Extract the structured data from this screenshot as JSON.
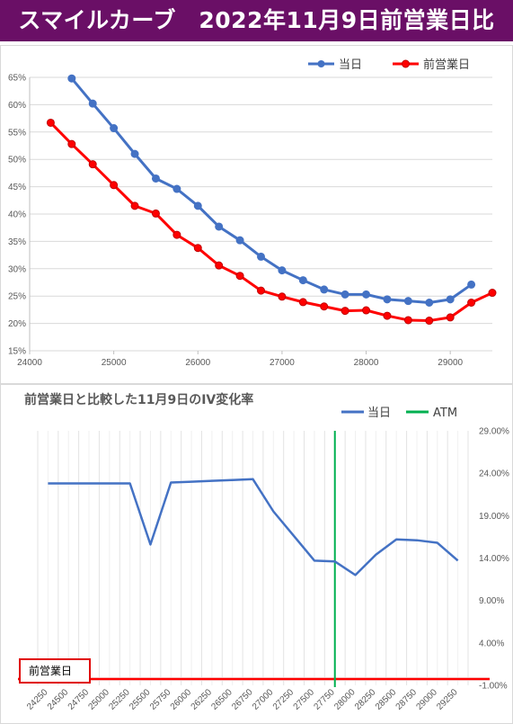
{
  "header": {
    "title": "スマイルカーブ　2022年11月9日前営業日比"
  },
  "colors": {
    "header_bg": "#6a0f66",
    "today": "#4472c4",
    "prev": "#ff0000",
    "atm": "#00b050",
    "grid": "#d9d9d9"
  },
  "chart_data": [
    {
      "type": "line",
      "title": "",
      "xlim": [
        24000,
        29500
      ],
      "ylim": [
        0.15,
        0.65
      ],
      "x_ticks": [
        "24000",
        "25000",
        "26000",
        "27000",
        "28000",
        "29000"
      ],
      "y_ticks": [
        "15%",
        "20%",
        "25%",
        "30%",
        "35%",
        "40%",
        "45%",
        "50%",
        "55%",
        "60%",
        "65%"
      ],
      "grid": "horizontal",
      "legend": "top-right",
      "series": [
        {
          "name": "当日",
          "x": [
            24500,
            24750,
            25000,
            25250,
            25500,
            25750,
            26000,
            26250,
            26500,
            26750,
            27000,
            27250,
            27500,
            27750,
            28000,
            28250,
            28500,
            28750,
            29000,
            29250
          ],
          "y": [
            0.648,
            0.602,
            0.557,
            0.51,
            0.465,
            0.446,
            0.415,
            0.377,
            0.352,
            0.322,
            0.297,
            0.279,
            0.262,
            0.253,
            0.253,
            0.244,
            0.241,
            0.238,
            0.244,
            0.271
          ]
        },
        {
          "name": "前営業日",
          "x": [
            24250,
            24500,
            24750,
            25000,
            25250,
            25500,
            25750,
            26000,
            26250,
            26500,
            26750,
            27000,
            27250,
            27500,
            27750,
            28000,
            28250,
            28500,
            28750,
            29000,
            29250,
            29500
          ],
          "y": [
            0.567,
            0.528,
            0.491,
            0.453,
            0.415,
            0.401,
            0.362,
            0.338,
            0.306,
            0.287,
            0.26,
            0.249,
            0.239,
            0.231,
            0.223,
            0.224,
            0.214,
            0.206,
            0.205,
            0.211,
            0.238,
            0.256
          ]
        }
      ]
    },
    {
      "type": "line",
      "title": "前営業日と比較した11月9日のIV変化率",
      "categories": [
        "24250",
        "24500",
        "24750",
        "25000",
        "25250",
        "25500",
        "25750",
        "26000",
        "26250",
        "26500",
        "26750",
        "27000",
        "27250",
        "27500",
        "27750",
        "28000",
        "28250",
        "28500",
        "28750",
        "29000",
        "29250"
      ],
      "ylim": [
        -0.01,
        0.29
      ],
      "y_ticks": [
        "29.00%",
        "24.00%",
        "19.00%",
        "14.00%",
        "9.00%",
        "4.00%",
        "-1.00%"
      ],
      "grid": "vertical",
      "legend": "top-right",
      "atm": "27750",
      "series": [
        {
          "name": "当日",
          "values": [
            0.228,
            0.228,
            0.228,
            0.228,
            0.228,
            0.156,
            0.229,
            0.23,
            0.231,
            0.232,
            0.233,
            0.195,
            0.166,
            0.137,
            0.136,
            0.12,
            0.144,
            0.162,
            0.161,
            0.158,
            0.137
          ]
        }
      ],
      "legend_items": [
        "当日",
        "ATM"
      ],
      "annotation": "前営業日"
    }
  ]
}
